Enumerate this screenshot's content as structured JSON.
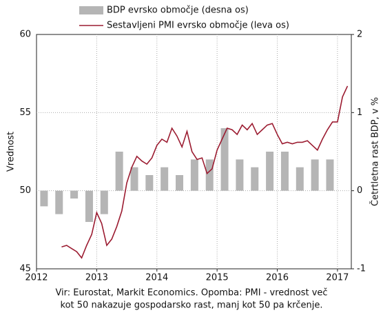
{
  "chart_data": {
    "type": "bar-line",
    "xlim": [
      2012,
      2017.23
    ],
    "xticks": [
      2012,
      2013,
      2014,
      2015,
      2016,
      2017
    ],
    "ylim": [
      45,
      60
    ],
    "yticks": [
      45,
      50,
      55,
      60
    ],
    "y2lim": [
      -1,
      2
    ],
    "y2ticks": [
      -1,
      0,
      1,
      2
    ],
    "ylabel": "Vrednost",
    "y2label": "Četrtletna rast BDP, v %",
    "grid": true,
    "note": [
      "Vir: Eurostat, Markit Economics. Opomba: PMI - vrednost več",
      "kot 50 nakazuje gospodarsko rast, manj kot 50 pa krčenje."
    ],
    "series": [
      {
        "name": "BDP evrsko območje (desna os)",
        "type": "bar",
        "axis": "y2",
        "color": "#b5b5b5",
        "x": [
          2012.125,
          2012.375,
          2012.625,
          2012.875,
          2013.125,
          2013.375,
          2013.625,
          2013.875,
          2014.125,
          2014.375,
          2014.625,
          2014.875,
          2015.125,
          2015.375,
          2015.625,
          2015.875,
          2016.125,
          2016.375,
          2016.625,
          2016.875
        ],
        "values": [
          -0.2,
          -0.3,
          -0.1,
          -0.4,
          -0.3,
          0.5,
          0.3,
          0.2,
          0.3,
          0.2,
          0.4,
          0.4,
          0.8,
          0.4,
          0.3,
          0.5,
          0.5,
          0.3,
          0.4,
          0.4
        ]
      },
      {
        "name": "Sestavljeni PMI evrsko območje (leva os)",
        "type": "line",
        "axis": "y",
        "color": "#9b1b30",
        "x": [
          2012.417,
          2012.5,
          2012.583,
          2012.667,
          2012.75,
          2012.833,
          2012.917,
          2013.0,
          2013.083,
          2013.167,
          2013.25,
          2013.333,
          2013.417,
          2013.5,
          2013.583,
          2013.667,
          2013.75,
          2013.833,
          2013.917,
          2014.0,
          2014.083,
          2014.167,
          2014.25,
          2014.333,
          2014.417,
          2014.5,
          2014.583,
          2014.667,
          2014.75,
          2014.833,
          2014.917,
          2015.0,
          2015.083,
          2015.167,
          2015.25,
          2015.333,
          2015.417,
          2015.5,
          2015.583,
          2015.667,
          2015.75,
          2015.833,
          2015.917,
          2016.0,
          2016.083,
          2016.167,
          2016.25,
          2016.333,
          2016.417,
          2016.5,
          2016.583,
          2016.667,
          2016.75,
          2016.833,
          2016.917,
          2017.0,
          2017.083,
          2017.167
        ],
        "values": [
          46.4,
          46.5,
          46.3,
          46.1,
          45.7,
          46.5,
          47.2,
          48.6,
          47.9,
          46.5,
          46.9,
          47.7,
          48.7,
          50.5,
          51.5,
          52.2,
          51.9,
          51.7,
          52.1,
          52.9,
          53.3,
          53.1,
          54.0,
          53.5,
          52.8,
          53.8,
          52.5,
          52.0,
          52.1,
          51.1,
          51.4,
          52.6,
          53.3,
          54.0,
          53.9,
          53.6,
          54.2,
          53.9,
          54.3,
          53.6,
          53.9,
          54.2,
          54.3,
          53.6,
          53.0,
          53.1,
          53.0,
          53.1,
          53.1,
          53.2,
          52.9,
          52.6,
          53.3,
          53.9,
          54.4,
          54.4,
          56.0,
          56.7
        ]
      }
    ]
  }
}
